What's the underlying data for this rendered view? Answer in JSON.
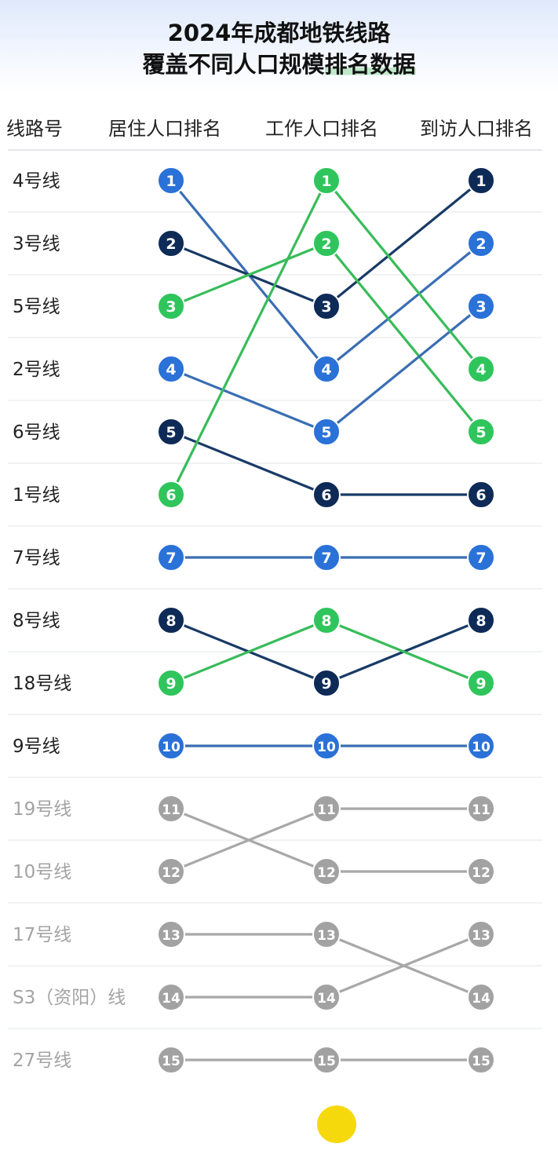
{
  "title_line1": "2024年成都地铁线路",
  "title_line2_plain": "覆盖不同人口规模",
  "title_line2_hl": "排名数据",
  "headers": {
    "line": "线路号",
    "residential": "居住人口排名",
    "working": "工作人口排名",
    "visiting": "到访人口排名"
  },
  "colors": {
    "blue": "#2a71d8",
    "navy": "#0e2a56",
    "green": "#2fc55c",
    "gray": "#a2a2a2",
    "link_blue": "#3a6eb3",
    "link_navy": "#183a66",
    "link_green": "#38bc5a",
    "link_gray": "#a8a8a8",
    "label_dark": "#222222",
    "label_gray": "#a3a3a3"
  },
  "chart_data": {
    "type": "bump",
    "columns": [
      "居住人口排名",
      "工作人口排名",
      "到访人口排名"
    ],
    "rank_range": [
      1,
      15
    ],
    "series": [
      {
        "name": "4号线",
        "ranks": [
          1,
          4,
          2
        ],
        "color": "blue"
      },
      {
        "name": "3号线",
        "ranks": [
          2,
          3,
          1
        ],
        "color": "navy"
      },
      {
        "name": "5号线",
        "ranks": [
          3,
          2,
          5
        ],
        "color": "green"
      },
      {
        "name": "2号线",
        "ranks": [
          4,
          5,
          3
        ],
        "color": "blue"
      },
      {
        "name": "6号线",
        "ranks": [
          5,
          6,
          6
        ],
        "color": "navy"
      },
      {
        "name": "1号线",
        "ranks": [
          6,
          1,
          4
        ],
        "color": "green"
      },
      {
        "name": "7号线",
        "ranks": [
          7,
          7,
          7
        ],
        "color": "blue"
      },
      {
        "name": "8号线",
        "ranks": [
          8,
          9,
          8
        ],
        "color": "navy"
      },
      {
        "name": "18号线",
        "ranks": [
          9,
          8,
          9
        ],
        "color": "green"
      },
      {
        "name": "9号线",
        "ranks": [
          10,
          10,
          10
        ],
        "color": "blue"
      },
      {
        "name": "19号线",
        "ranks": [
          11,
          12,
          12
        ],
        "color": "gray"
      },
      {
        "name": "10号线",
        "ranks": [
          12,
          11,
          11
        ],
        "color": "gray"
      },
      {
        "name": "17号线",
        "ranks": [
          13,
          13,
          14
        ],
        "color": "gray"
      },
      {
        "name": "S3（资阳）线",
        "ranks": [
          14,
          14,
          13
        ],
        "color": "gray"
      },
      {
        "name": "27号线",
        "ranks": [
          15,
          15,
          15
        ],
        "color": "gray"
      }
    ],
    "node_colors": [
      [
        "blue",
        "green",
        "navy"
      ],
      [
        "navy",
        "green",
        "blue"
      ],
      [
        "green",
        "navy",
        "blue"
      ],
      [
        "blue",
        "blue",
        "green"
      ],
      [
        "navy",
        "blue",
        "green"
      ],
      [
        "green",
        "navy",
        "navy"
      ],
      [
        "blue",
        "blue",
        "blue"
      ],
      [
        "navy",
        "green",
        "navy"
      ],
      [
        "green",
        "navy",
        "green"
      ],
      [
        "blue",
        "blue",
        "blue"
      ],
      [
        "gray",
        "gray",
        "gray"
      ],
      [
        "gray",
        "gray",
        "gray"
      ],
      [
        "gray",
        "gray",
        "gray"
      ],
      [
        "gray",
        "gray",
        "gray"
      ],
      [
        "gray",
        "gray",
        "gray"
      ]
    ]
  }
}
